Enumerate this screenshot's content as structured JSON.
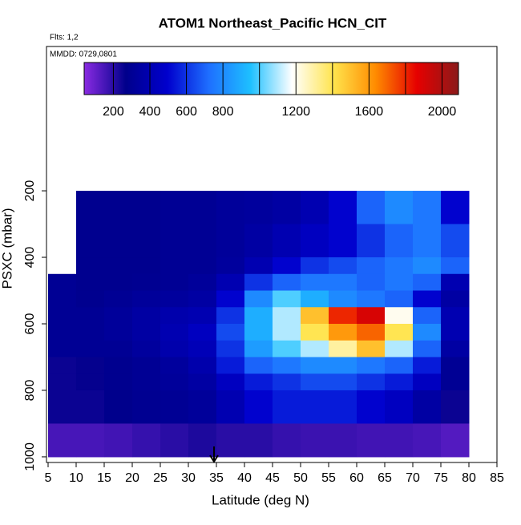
{
  "chart_data": {
    "type": "heatmap",
    "title": "ATOM1 Northeast_Pacific HCN_CIT",
    "subtitle": "Flts: 1,2",
    "annotation": "MMDD: 0729,0801",
    "x_label": "Latitude (deg N)",
    "y_label": "PSXC (mbar)",
    "xlim": [
      5,
      85
    ],
    "xticks": [
      5,
      10,
      15,
      20,
      25,
      30,
      35,
      40,
      45,
      50,
      55,
      60,
      65,
      70,
      75,
      80,
      85
    ],
    "ylim": [
      1017,
      -234
    ],
    "yticks": [
      200,
      400,
      600,
      800,
      1000
    ],
    "x_bins": [
      5,
      10,
      15,
      20,
      25,
      30,
      35,
      40,
      45,
      50,
      55,
      60,
      65,
      70,
      75,
      80
    ],
    "y_bins": [
      200,
      300,
      400,
      450,
      500,
      550,
      600,
      650,
      700,
      750,
      800,
      900,
      1000
    ],
    "z": [
      [
        null,
        280,
        280,
        280,
        300,
        300,
        320,
        330,
        350,
        400,
        500,
        700,
        800,
        750,
        500
      ],
      [
        null,
        280,
        280,
        280,
        300,
        300,
        320,
        350,
        400,
        450,
        500,
        600,
        700,
        750,
        650
      ],
      [
        null,
        280,
        280,
        280,
        300,
        300,
        330,
        400,
        500,
        600,
        650,
        700,
        750,
        800,
        700
      ],
      [
        300,
        280,
        280,
        290,
        300,
        320,
        400,
        600,
        700,
        750,
        750,
        700,
        750,
        700,
        400
      ],
      [
        300,
        280,
        300,
        320,
        330,
        350,
        500,
        800,
        1000,
        900,
        800,
        750,
        700,
        500,
        350
      ],
      [
        300,
        300,
        320,
        350,
        380,
        400,
        600,
        900,
        1100,
        1500,
        1800,
        1900,
        1200,
        700,
        400
      ],
      [
        300,
        300,
        320,
        350,
        400,
        450,
        650,
        900,
        1100,
        1400,
        1600,
        1700,
        1400,
        800,
        400
      ],
      [
        300,
        300,
        300,
        330,
        380,
        420,
        600,
        850,
        1000,
        1100,
        1300,
        1500,
        1100,
        700,
        350
      ],
      [
        250,
        260,
        280,
        300,
        330,
        380,
        550,
        700,
        750,
        800,
        800,
        750,
        700,
        550,
        300
      ],
      [
        250,
        260,
        280,
        300,
        320,
        350,
        450,
        550,
        600,
        650,
        650,
        600,
        550,
        450,
        300
      ],
      [
        250,
        250,
        270,
        290,
        300,
        320,
        400,
        500,
        550,
        550,
        550,
        500,
        450,
        350,
        250
      ],
      [
        150,
        150,
        160,
        180,
        200,
        220,
        200,
        200,
        180,
        170,
        170,
        160,
        160,
        150,
        130
      ]
    ],
    "clim": [
      40,
      2090
    ],
    "colors": [
      "#8a2be2",
      "#00008b",
      "#0000cd",
      "#1e6fff",
      "#1ec0ff",
      "#ffffff",
      "#ffe44d",
      "#ff8c00",
      "#e60000",
      "#8b1a1a"
    ],
    "colorbar_ticks": [
      200,
      400,
      600,
      800,
      1200,
      1600,
      2000
    ],
    "colorbar_lines": [
      200,
      400,
      600,
      800,
      1000,
      1200,
      1400,
      1600,
      1800,
      2000
    ]
  }
}
